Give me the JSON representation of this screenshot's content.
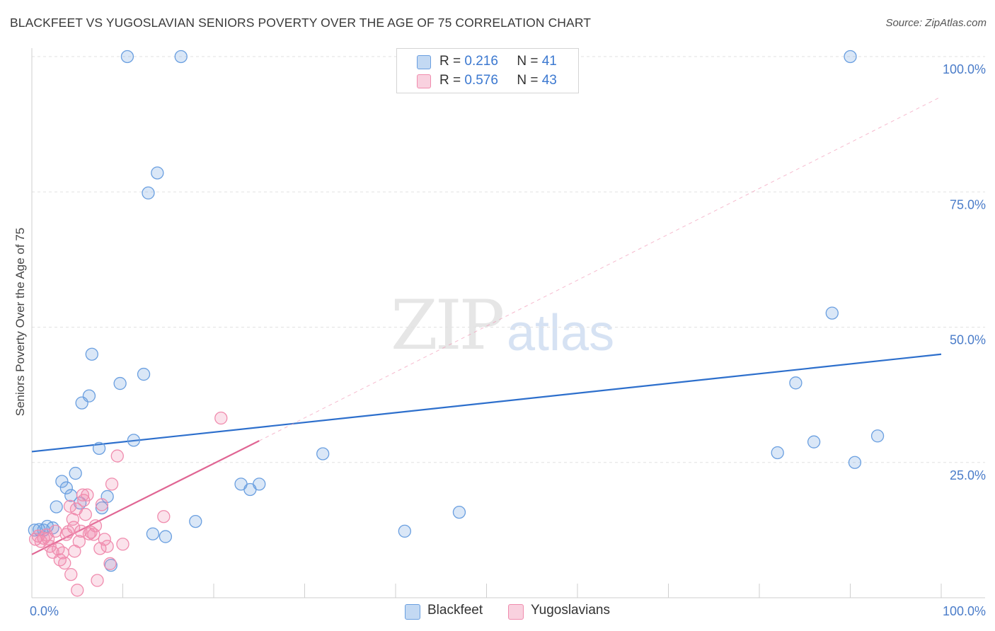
{
  "title": "BLACKFEET VS YUGOSLAVIAN SENIORS POVERTY OVER THE AGE OF 75 CORRELATION CHART",
  "source": "Source: ZipAtlas.com",
  "watermark": {
    "zip": "ZIP",
    "atlas": "atlas"
  },
  "legend": {
    "r_label": "R =",
    "n_label": "N =",
    "rows": [
      {
        "r": "0.216",
        "n": "41",
        "color": "#6a9fe0"
      },
      {
        "r": "0.576",
        "n": "43",
        "color": "#f08cae"
      }
    ]
  },
  "bottom_legend": [
    {
      "label": "Blackfeet",
      "color": "#6a9fe0"
    },
    {
      "label": "Yugoslavians",
      "color": "#f08cae"
    }
  ],
  "chart_data": {
    "type": "scatter",
    "title": "BLACKFEET VS YUGOSLAVIAN SENIORS POVERTY OVER THE AGE OF 75 CORRELATION CHART",
    "xlabel": "",
    "ylabel": "Seniors Poverty Over the Age of 75",
    "xlim": [
      0,
      100
    ],
    "ylim": [
      0,
      100
    ],
    "x_tick_labels": [
      "0.0%",
      "100.0%"
    ],
    "y_ticks": [
      25,
      50,
      75,
      100
    ],
    "y_tick_labels": [
      "25.0%",
      "50.0%",
      "75.0%",
      "100.0%"
    ],
    "grid": true,
    "series": [
      {
        "name": "Blackfeet",
        "color": "#6a9fe0",
        "trend": {
          "x": [
            0,
            100
          ],
          "y": [
            27.0,
            45.0
          ],
          "style": "solid"
        },
        "points": [
          [
            0.3,
            12.5
          ],
          [
            0.8,
            12.6
          ],
          [
            1.3,
            12.5
          ],
          [
            1.7,
            13.2
          ],
          [
            2.3,
            12.9
          ],
          [
            2.7,
            16.8
          ],
          [
            3.3,
            21.5
          ],
          [
            3.8,
            20.3
          ],
          [
            4.3,
            18.9
          ],
          [
            4.8,
            23.0
          ],
          [
            5.3,
            17.5
          ],
          [
            5.5,
            36.0
          ],
          [
            6.3,
            37.3
          ],
          [
            6.6,
            45.0
          ],
          [
            7.4,
            27.6
          ],
          [
            7.7,
            16.6
          ],
          [
            8.3,
            18.7
          ],
          [
            8.7,
            6.0
          ],
          [
            9.7,
            39.6
          ],
          [
            10.5,
            100.0
          ],
          [
            11.2,
            29.1
          ],
          [
            12.3,
            41.3
          ],
          [
            12.8,
            74.8
          ],
          [
            13.3,
            11.8
          ],
          [
            13.8,
            78.5
          ],
          [
            14.7,
            11.3
          ],
          [
            16.4,
            100.0
          ],
          [
            18.0,
            14.1
          ],
          [
            23.0,
            21.0
          ],
          [
            24.0,
            20.0
          ],
          [
            25.0,
            21.0
          ],
          [
            32.0,
            26.6
          ],
          [
            41.0,
            12.3
          ],
          [
            47.0,
            15.8
          ],
          [
            82.0,
            26.8
          ],
          [
            84.0,
            39.7
          ],
          [
            86.0,
            28.8
          ],
          [
            88.0,
            52.6
          ],
          [
            90.0,
            100.0
          ],
          [
            90.5,
            25.0
          ],
          [
            93.0,
            29.9
          ]
        ]
      },
      {
        "name": "Yugoslavians",
        "color": "#f08cae",
        "trend": {
          "x": [
            0,
            25
          ],
          "y": [
            8.0,
            29.0
          ],
          "style": "solid",
          "extension": {
            "x": [
              25,
              100
            ],
            "y": [
              29.0,
              92.6
            ],
            "style": "dashed"
          }
        },
        "points": [
          [
            0.4,
            10.8
          ],
          [
            0.7,
            11.4
          ],
          [
            1.0,
            10.4
          ],
          [
            1.3,
            11.0
          ],
          [
            1.6,
            11.6
          ],
          [
            1.8,
            10.9
          ],
          [
            2.0,
            9.5
          ],
          [
            2.3,
            8.4
          ],
          [
            2.6,
            12.3
          ],
          [
            2.9,
            9.0
          ],
          [
            3.1,
            7.0
          ],
          [
            3.4,
            8.3
          ],
          [
            3.6,
            6.4
          ],
          [
            3.8,
            11.7
          ],
          [
            4.0,
            12.2
          ],
          [
            4.2,
            16.9
          ],
          [
            4.3,
            4.3
          ],
          [
            4.5,
            14.5
          ],
          [
            4.7,
            8.6
          ],
          [
            4.9,
            16.4
          ],
          [
            5.0,
            1.4
          ],
          [
            5.2,
            10.4
          ],
          [
            5.4,
            12.3
          ],
          [
            5.6,
            19.0
          ],
          [
            5.7,
            18.0
          ],
          [
            5.9,
            15.4
          ],
          [
            6.1,
            19.0
          ],
          [
            6.3,
            11.8
          ],
          [
            6.5,
            12.1
          ],
          [
            6.8,
            11.7
          ],
          [
            7.0,
            13.3
          ],
          [
            7.2,
            3.2
          ],
          [
            7.5,
            9.1
          ],
          [
            7.7,
            17.2
          ],
          [
            8.0,
            10.8
          ],
          [
            8.3,
            9.5
          ],
          [
            8.6,
            6.3
          ],
          [
            8.8,
            21.0
          ],
          [
            9.4,
            26.2
          ],
          [
            10.0,
            9.9
          ],
          [
            14.5,
            15.0
          ],
          [
            20.8,
            33.2
          ],
          [
            4.6,
            13.0
          ]
        ]
      }
    ]
  }
}
